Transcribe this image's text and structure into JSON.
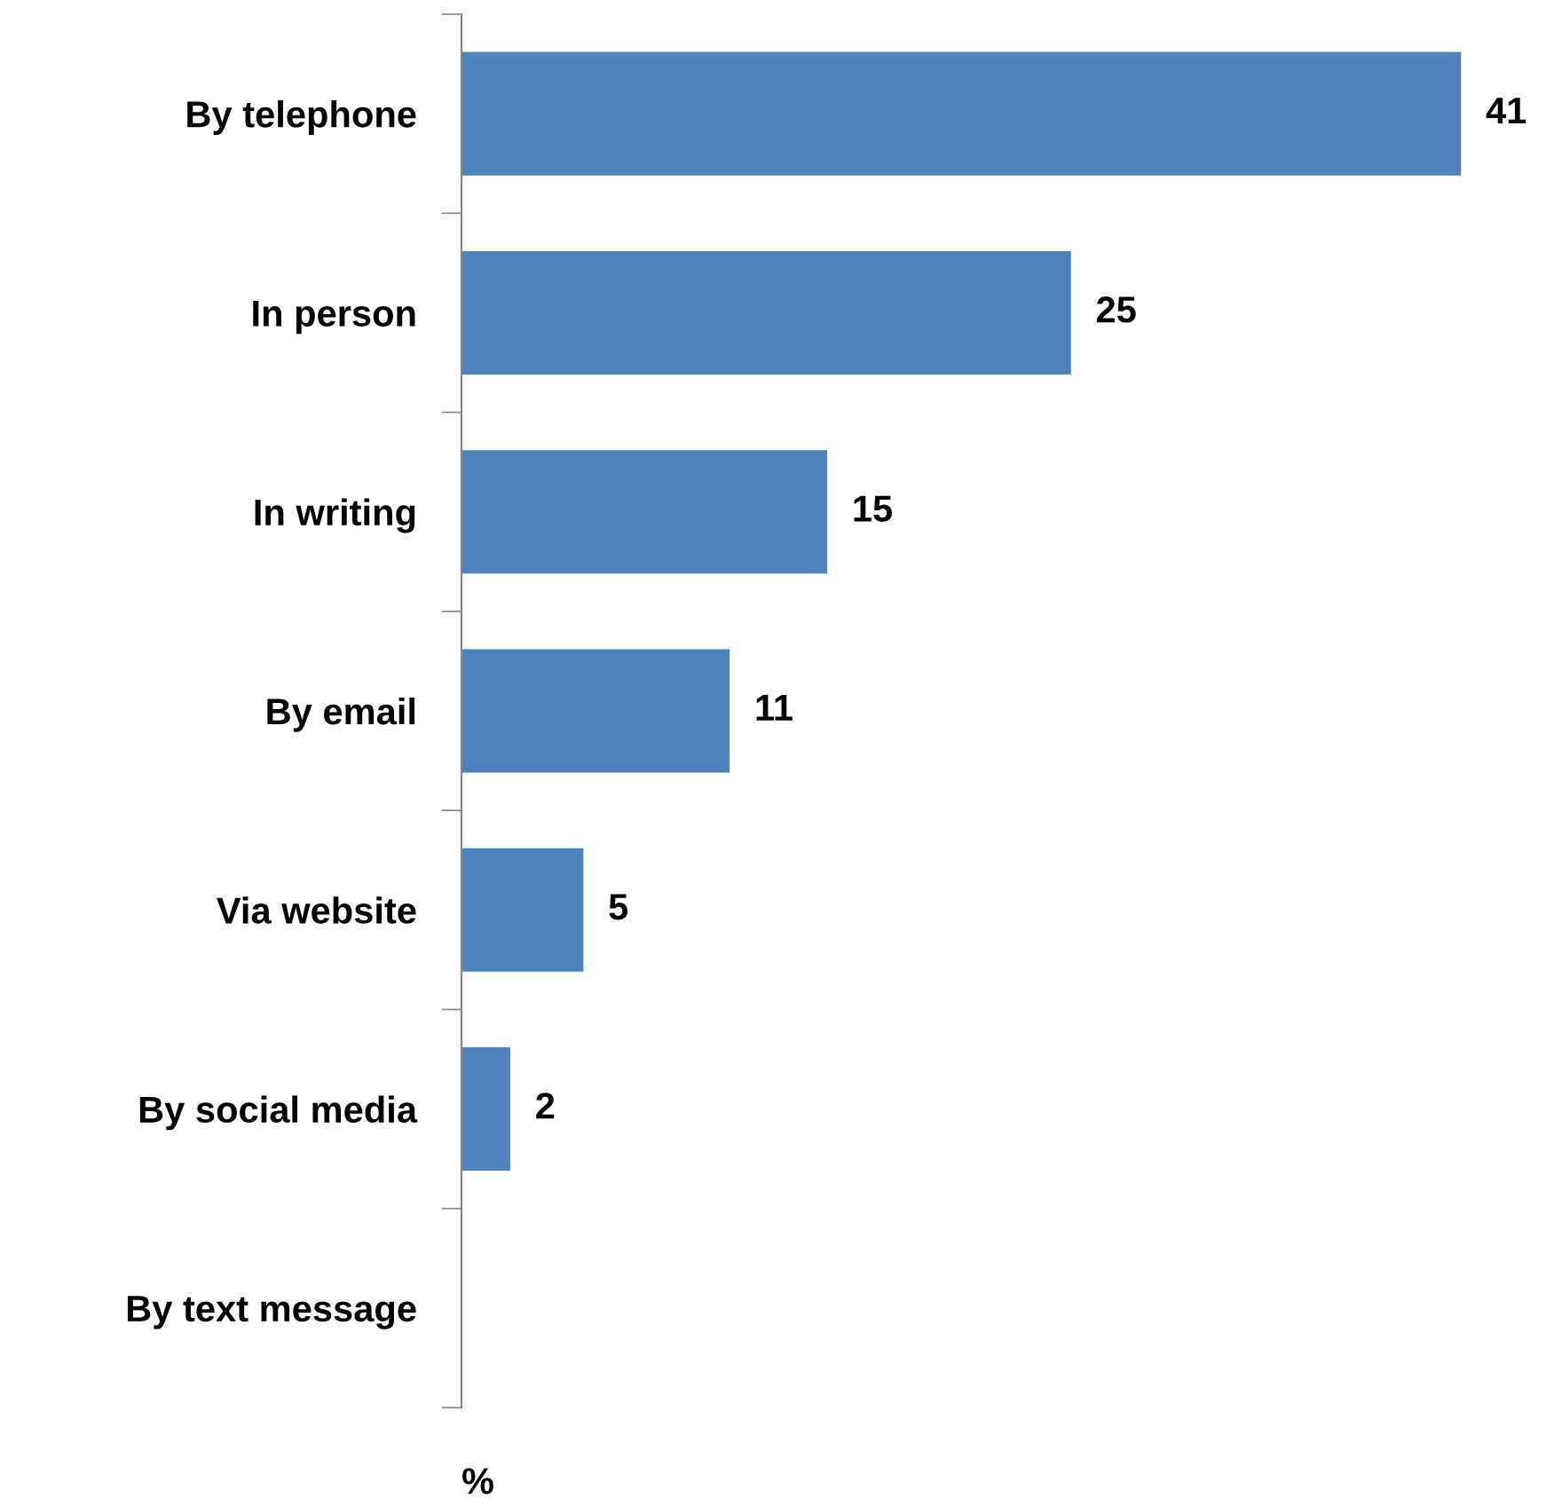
{
  "chart_data": {
    "type": "bar",
    "orientation": "horizontal",
    "xlabel": "%",
    "categories": [
      "By telephone",
      "In person",
      "In writing",
      "By email",
      "Via website",
      "By social media",
      "By text message"
    ],
    "values": [
      41,
      25,
      15,
      11,
      5,
      2,
      null
    ],
    "value_labels": [
      "41",
      "25",
      "15",
      "11",
      "5",
      "2",
      null
    ],
    "color": "#4f81bd",
    "grid": false,
    "legend": false,
    "tick_labels": "y"
  }
}
